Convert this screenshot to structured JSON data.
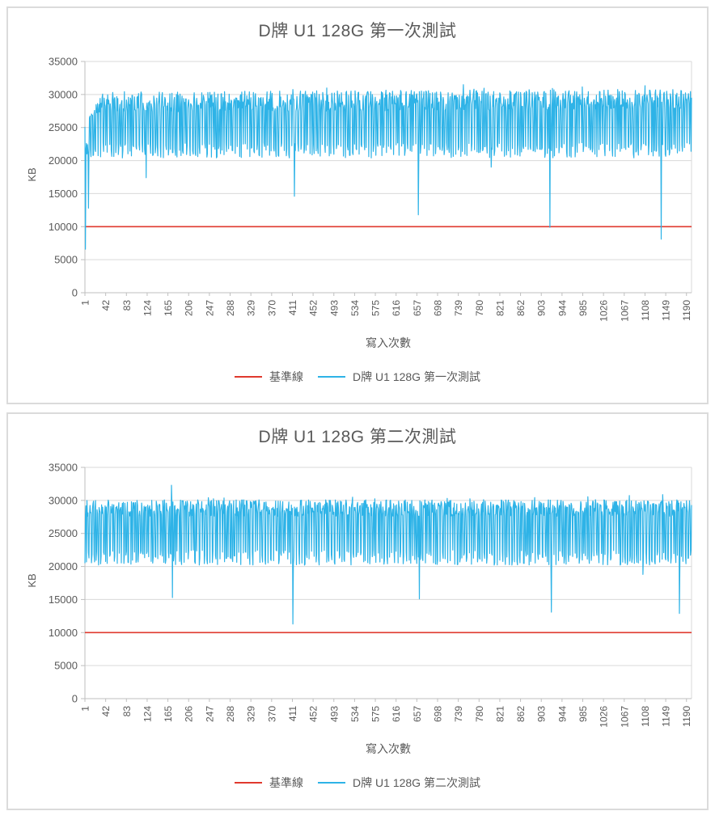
{
  "page": {
    "background": "#ffffff"
  },
  "style": {
    "text_color": "#595959",
    "grid_color": "#d9d9d9",
    "axis_color": "#bfbfbf",
    "baseline_color": "#e0392e",
    "series_color": "#2eb3e7"
  },
  "chart_data": [
    {
      "type": "line",
      "title": "D牌 U1 128G 第一次測試",
      "xlabel": "寫入次數",
      "ylabel": "KB",
      "xlim": [
        1,
        1200
      ],
      "ylim": [
        0,
        35000
      ],
      "grid": "horizontal",
      "legend_position": "bottom",
      "x_ticks": [
        1,
        42,
        83,
        124,
        165,
        206,
        247,
        288,
        329,
        370,
        411,
        452,
        493,
        534,
        575,
        616,
        657,
        698,
        739,
        780,
        821,
        862,
        903,
        944,
        985,
        1026,
        1067,
        1108,
        1149,
        1190
      ],
      "y_ticks": [
        0,
        5000,
        10000,
        15000,
        20000,
        25000,
        30000,
        35000
      ],
      "series": [
        {
          "name": "基準線",
          "color": "#e0392e",
          "kind": "constant",
          "value": 10000
        },
        {
          "name": "D牌 U1 128G 第一次測試",
          "color": "#2eb3e7",
          "kind": "noisy-square",
          "n": 1200,
          "seed": 11,
          "low_band": [
            20400,
            22700
          ],
          "high_band": [
            27300,
            30400
          ],
          "spike_chance": 0.05,
          "spike_extra": 1000,
          "ramp_until": 35,
          "drift": 400,
          "start_overrides": [
            [
              1,
              25100
            ],
            [
              2,
              6600
            ],
            [
              3,
              21800
            ],
            [
              4,
              22600
            ],
            [
              5,
              21000
            ],
            [
              6,
              22400
            ],
            [
              7,
              21200
            ],
            [
              8,
              12800
            ],
            [
              9,
              21500
            ]
          ],
          "anomalies": [
            [
              122,
              17400
            ],
            [
              415,
              14600
            ],
            [
              660,
              11800
            ],
            [
              804,
              19000
            ],
            [
              920,
              9900
            ],
            [
              1140,
              8100
            ]
          ],
          "end_value": 29500
        }
      ]
    },
    {
      "type": "line",
      "title": "D牌 U1 128G 第二次測試",
      "xlabel": "寫入次數",
      "ylabel": "KB",
      "xlim": [
        1,
        1200
      ],
      "ylim": [
        0,
        35000
      ],
      "grid": "horizontal",
      "legend_position": "bottom",
      "x_ticks": [
        1,
        42,
        83,
        124,
        165,
        206,
        247,
        288,
        329,
        370,
        411,
        452,
        493,
        534,
        575,
        616,
        657,
        698,
        739,
        780,
        821,
        862,
        903,
        944,
        985,
        1026,
        1067,
        1108,
        1149,
        1190
      ],
      "y_ticks": [
        0,
        5000,
        10000,
        15000,
        20000,
        25000,
        30000,
        35000
      ],
      "series": [
        {
          "name": "基準線",
          "color": "#e0392e",
          "kind": "constant",
          "value": 10000
        },
        {
          "name": "D牌 U1 128G 第二次測試",
          "color": "#2eb3e7",
          "kind": "noisy-square",
          "n": 1200,
          "seed": 23,
          "low_band": [
            20200,
            22500
          ],
          "high_band": [
            27600,
            30100
          ],
          "spike_chance": 0.05,
          "spike_extra": 900,
          "ramp_until": 0,
          "drift": 0,
          "start_overrides": [
            [
              1,
              20500
            ]
          ],
          "anomalies": [
            [
              172,
              32300
            ],
            [
              174,
              15300
            ],
            [
              412,
              11300
            ],
            [
              662,
              15100
            ],
            [
              923,
              13100
            ],
            [
              1104,
              18800
            ],
            [
              1176,
              12900
            ]
          ],
          "end_value": 29300
        }
      ]
    }
  ]
}
